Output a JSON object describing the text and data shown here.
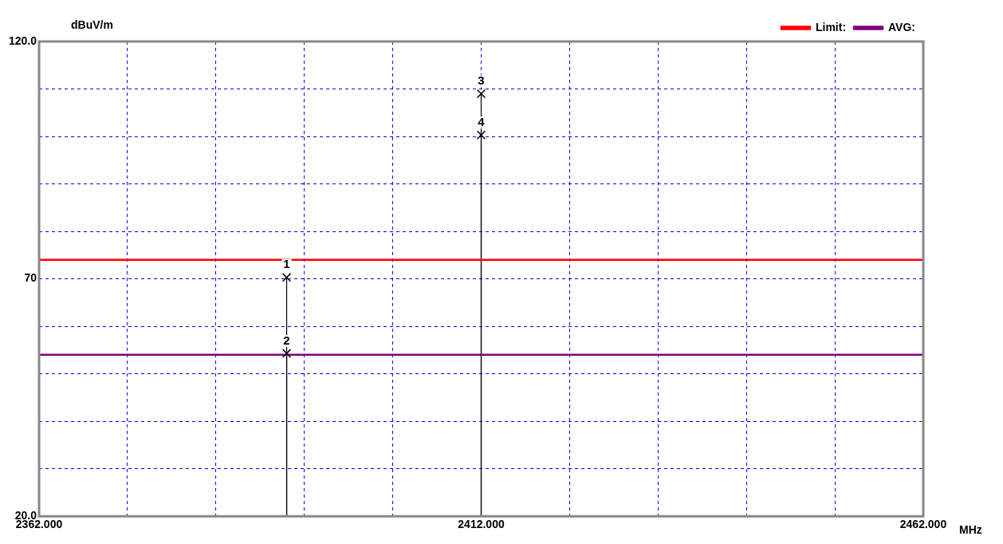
{
  "chart_data": {
    "type": "lollipop",
    "xlabel": "MHz",
    "ylabel": "dBuV/m",
    "xlim": [
      2362,
      2462
    ],
    "ylim": [
      20,
      120
    ],
    "xticks": [
      {
        "value": 2362,
        "label": "2362.000"
      },
      {
        "value": 2372,
        "label": null
      },
      {
        "value": 2382,
        "label": null
      },
      {
        "value": 2392,
        "label": null
      },
      {
        "value": 2402,
        "label": null
      },
      {
        "value": 2412,
        "label": "2412.000"
      },
      {
        "value": 2422,
        "label": null
      },
      {
        "value": 2432,
        "label": null
      },
      {
        "value": 2442,
        "label": null
      },
      {
        "value": 2452,
        "label": null
      },
      {
        "value": 2462,
        "label": "2462.000"
      }
    ],
    "yticks": [
      {
        "value": 20,
        "label": "20.0"
      },
      {
        "value": 30,
        "label": null
      },
      {
        "value": 40,
        "label": null
      },
      {
        "value": 50,
        "label": null
      },
      {
        "value": 60,
        "label": null
      },
      70,
      {
        "value": 80,
        "label": null
      },
      {
        "value": 90,
        "label": null
      },
      {
        "value": 100,
        "label": null
      },
      {
        "value": 110,
        "label": null
      },
      {
        "value": 120,
        "label": "120.0"
      }
    ],
    "grid": true,
    "legend": "top right",
    "annotations": [
      "1",
      "2",
      "3",
      "4"
    ],
    "series": [
      {
        "color": "#000000",
        "marker": "cross",
        "x": [
          2390,
          2390,
          2412,
          2412
        ],
        "values": [
          70.3,
          54.3,
          109,
          100.3
        ]
      },
      {
        "type": "line",
        "name": "Limit:",
        "color": "#ff0000",
        "x": [
          2362,
          2462
        ],
        "values": [
          74,
          74
        ]
      },
      {
        "type": "line",
        "name": "AVG:",
        "color": "#800080",
        "x": [
          2362,
          2462
        ],
        "values": [
          54,
          54
        ]
      }
    ]
  }
}
